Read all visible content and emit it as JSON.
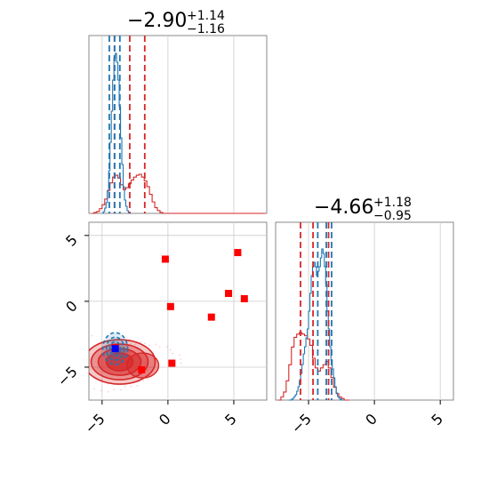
{
  "colors": {
    "red": "#d62728",
    "blue": "#1f77b4",
    "marker_red": "#ff0000",
    "marker_blue": "#0000ff",
    "grid": "#cccccc",
    "frame": "#888888"
  },
  "chart_data": [
    {
      "type": "histogram",
      "panel": "top-left",
      "title": {
        "median": "−2.90",
        "plus": "+1.14",
        "minus": "−1.16"
      },
      "xlim": [
        -6,
        7.5
      ],
      "grid": true,
      "ticks_shown": false,
      "series": [
        {
          "color": "#d62728",
          "bins_x": [
            -5.7,
            -5.5,
            -5.3,
            -5.1,
            -4.9,
            -4.7,
            -4.5,
            -4.3,
            -4.1,
            -3.9,
            -3.7,
            -3.5,
            -3.3,
            -3.1,
            -2.9,
            -2.7,
            -2.5,
            -2.3,
            -2.1,
            -1.9,
            -1.7,
            -1.5,
            -1.3,
            -1.1,
            -0.9,
            -0.7,
            -0.5,
            -0.3,
            -0.1,
            0.1,
            0.3,
            0.5,
            0.7,
            0.9,
            1.1,
            1.3,
            1.5,
            1.7,
            1.9,
            2.1,
            2.3,
            2.5,
            2.7,
            2.9,
            3.1,
            3.3,
            3.5,
            3.7,
            3.9,
            4.1,
            4.3,
            4.5,
            4.7,
            4.9,
            5.1,
            5.3,
            5.5,
            5.7,
            5.9,
            6.1,
            6.3,
            6.5,
            6.7,
            6.9,
            7.1,
            7.3
          ],
          "counts": [
            0,
            1,
            2,
            5,
            9,
            15,
            24,
            32,
            38,
            40,
            37,
            30,
            25,
            27,
            31,
            35,
            38,
            40,
            41,
            38,
            34,
            28,
            20,
            12,
            6,
            3,
            1,
            0,
            0,
            0,
            0,
            0,
            0,
            0,
            0,
            0,
            0,
            0,
            0,
            0,
            0,
            0,
            0,
            0,
            0,
            0,
            0,
            0,
            0,
            0,
            0,
            0,
            0,
            0,
            0,
            0,
            0,
            0,
            0,
            0,
            0,
            0,
            0,
            0,
            0,
            0
          ],
          "quantile_lines": [
            -4.06,
            -2.9,
            -1.76
          ]
        },
        {
          "color": "#1f77b4",
          "bins_x": [
            -4.95,
            -4.85,
            -4.75,
            -4.65,
            -4.55,
            -4.45,
            -4.35,
            -4.25,
            -4.15,
            -4.05,
            -3.95,
            -3.85,
            -3.75,
            -3.65,
            -3.55,
            -3.45,
            -3.35,
            -3.25,
            -3.15,
            -3.05,
            -2.95,
            -2.85
          ],
          "counts": [
            0,
            2,
            6,
            12,
            25,
            48,
            80,
            115,
            150,
            175,
            180,
            170,
            150,
            120,
            85,
            55,
            30,
            15,
            8,
            3,
            1,
            0
          ],
          "quantile_lines": [
            -4.45,
            -4.05,
            -3.65
          ]
        }
      ]
    },
    {
      "type": "histogram",
      "panel": "bottom-right",
      "title": {
        "median": "−4.66",
        "plus": "+1.18",
        "minus": "−0.95"
      },
      "xlim": [
        -7.5,
        6
      ],
      "grid": true,
      "xticks": [
        "−5",
        "0",
        "5"
      ],
      "xtick_values": [
        -5,
        0,
        5
      ],
      "series": [
        {
          "color": "#d62728",
          "bins_x": [
            -7.2,
            -7.0,
            -6.8,
            -6.6,
            -6.4,
            -6.2,
            -6.0,
            -5.8,
            -5.6,
            -5.4,
            -5.2,
            -5.0,
            -4.8,
            -4.6,
            -4.4,
            -4.2,
            -4.0,
            -3.8,
            -3.6,
            -3.4,
            -3.2,
            -3.0,
            -2.8,
            -2.6,
            -2.4,
            -2.2,
            -2.0
          ],
          "counts": [
            0,
            2,
            5,
            12,
            22,
            33,
            39,
            41,
            42,
            41,
            40,
            38,
            34,
            26,
            20,
            18,
            20,
            22,
            24,
            20,
            14,
            8,
            4,
            2,
            1,
            0,
            0
          ],
          "quantile_lines": [
            -5.61,
            -4.66,
            -3.48
          ]
        },
        {
          "color": "#1f77b4",
          "bins_x": [
            -6.45,
            -6.35,
            -6.25,
            -6.15,
            -6.05,
            -5.95,
            -5.85,
            -5.75,
            -5.65,
            -5.55,
            -5.45,
            -5.35,
            -5.25,
            -5.15,
            -5.05,
            -4.95,
            -4.85,
            -4.75,
            -4.65,
            -4.55,
            -4.45,
            -4.35,
            -4.25,
            -4.15,
            -4.05,
            -3.95,
            -3.85,
            -3.75,
            -3.65,
            -3.55,
            -3.45,
            -3.35,
            -3.25,
            -3.15,
            -3.05,
            -2.95,
            -2.85,
            -2.75,
            -2.65,
            -2.55,
            -2.45,
            -2.35
          ],
          "counts": [
            0,
            0,
            1,
            2,
            4,
            6,
            10,
            15,
            22,
            30,
            40,
            52,
            60,
            70,
            80,
            100,
            120,
            140,
            150,
            155,
            150,
            140,
            145,
            150,
            160,
            170,
            165,
            150,
            130,
            100,
            80,
            60,
            45,
            35,
            25,
            15,
            8,
            4,
            2,
            1,
            0,
            0
          ],
          "quantile_lines": [
            -4.3,
            -3.65,
            -3.25
          ]
        }
      ]
    },
    {
      "type": "scatter",
      "panel": "bottom-left",
      "xlim": [
        -6,
        7.5
      ],
      "ylim": [
        -7.5,
        6
      ],
      "grid": true,
      "xticks": [
        "−5",
        "0",
        "5"
      ],
      "xtick_values": [
        -5,
        0,
        5
      ],
      "yticks": [
        "5",
        "0",
        "−5"
      ],
      "ytick_values": [
        5,
        0,
        -5
      ],
      "red_points": [
        [
          -0.2,
          3.2
        ],
        [
          5.3,
          3.7
        ],
        [
          0.2,
          -0.4
        ],
        [
          4.6,
          0.6
        ],
        [
          5.8,
          0.2
        ],
        [
          3.3,
          -1.2
        ],
        [
          0.3,
          -4.7
        ],
        [
          -2.0,
          -5.2
        ]
      ],
      "blue_point": [
        -4.0,
        -3.6
      ],
      "red_square_at_blue": [
        -4.0,
        -3.5
      ],
      "red_density_center": [
        -3.4,
        -4.6
      ],
      "blue_density_center": [
        -4.0,
        -3.6
      ]
    }
  ]
}
